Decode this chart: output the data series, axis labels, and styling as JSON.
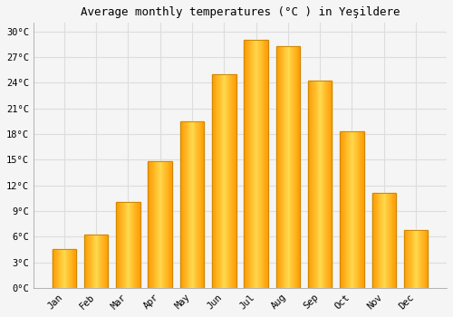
{
  "months": [
    "Jan",
    "Feb",
    "Mar",
    "Apr",
    "May",
    "Jun",
    "Jul",
    "Aug",
    "Sep",
    "Oct",
    "Nov",
    "Dec"
  ],
  "values": [
    4.5,
    6.2,
    10.0,
    14.8,
    19.5,
    25.0,
    29.0,
    28.3,
    24.3,
    18.3,
    11.1,
    6.8
  ],
  "bar_color_main": "#FFA500",
  "bar_color_light": "#FFD966",
  "bar_edge_color": "#CC8800",
  "title": "Average monthly temperatures (°C ) in Yeşildere",
  "ylim": [
    0,
    31
  ],
  "yticks": [
    0,
    3,
    6,
    9,
    12,
    15,
    18,
    21,
    24,
    27,
    30
  ],
  "ytick_labels": [
    "0°C",
    "3°C",
    "6°C",
    "9°C",
    "12°C",
    "15°C",
    "18°C",
    "21°C",
    "24°C",
    "27°C",
    "30°C"
  ],
  "background_color": "#F5F5F5",
  "plot_bg_color": "#F5F5F5",
  "grid_color": "#DDDDDD",
  "title_fontsize": 9,
  "tick_fontsize": 7.5,
  "font_family": "monospace"
}
